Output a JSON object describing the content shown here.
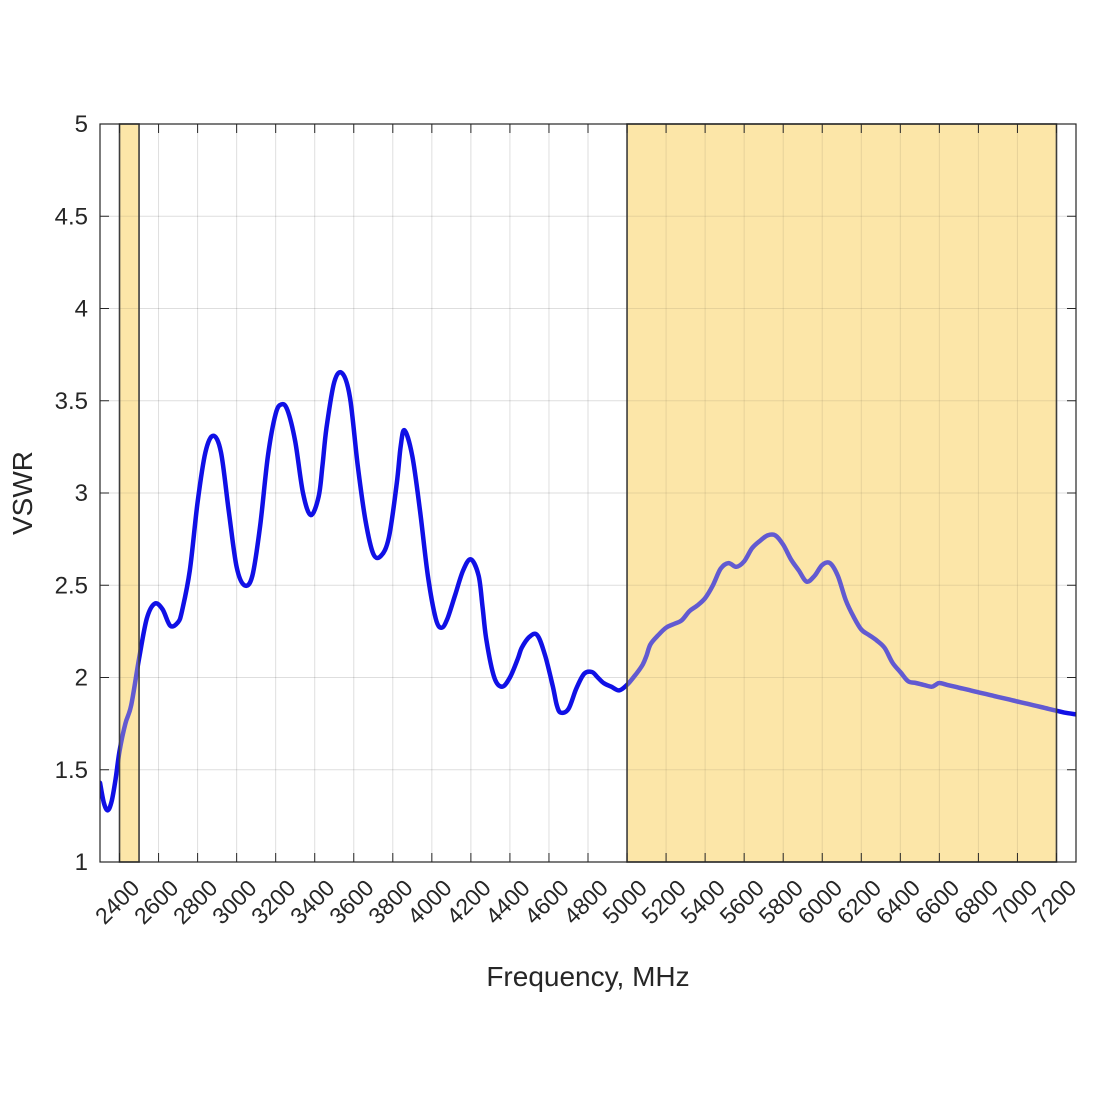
{
  "chart_data": {
    "type": "line",
    "title": "",
    "xlabel": "Frequency, MHz",
    "ylabel": "VSWR",
    "xlim": [
      2300,
      7300
    ],
    "ylim": [
      1,
      5
    ],
    "grid": true,
    "x_ticks": [
      2400,
      2600,
      2800,
      3000,
      3200,
      3400,
      3600,
      3800,
      4000,
      4200,
      4400,
      4600,
      4800,
      5000,
      5200,
      5400,
      5600,
      5800,
      6000,
      6200,
      6400,
      6600,
      6800,
      7000,
      7200
    ],
    "y_ticks": [
      1,
      1.5,
      2,
      2.5,
      3,
      3.5,
      4,
      4.5,
      5
    ],
    "y_tick_labels": [
      "1",
      "1.5",
      "2",
      "2.5",
      "3",
      "3.5",
      "4",
      "4.5",
      "5"
    ],
    "shaded_bands": [
      {
        "x_start": 2400,
        "x_end": 2500,
        "color": "#fce6a8"
      },
      {
        "x_start": 5000,
        "x_end": 7200,
        "color": "#fce6a8"
      }
    ],
    "series": [
      {
        "color": "#1010e6",
        "x": [
          2300,
          2320,
          2340,
          2360,
          2380,
          2400,
          2430,
          2460,
          2500,
          2540,
          2580,
          2620,
          2660,
          2700,
          2720,
          2760,
          2800,
          2840,
          2880,
          2920,
          2960,
          3000,
          3040,
          3080,
          3120,
          3160,
          3200,
          3230,
          3260,
          3300,
          3340,
          3380,
          3420,
          3440,
          3460,
          3500,
          3540,
          3580,
          3620,
          3660,
          3700,
          3740,
          3780,
          3820,
          3840,
          3860,
          3900,
          3940,
          3980,
          4020,
          4050,
          4080,
          4120,
          4160,
          4200,
          4240,
          4260,
          4280,
          4320,
          4360,
          4400,
          4440,
          4460,
          4500,
          4540,
          4580,
          4620,
          4640,
          4660,
          4700,
          4740,
          4780,
          4820,
          4850,
          4880,
          4920,
          4960,
          5000,
          5040,
          5080,
          5100,
          5120,
          5160,
          5200,
          5240,
          5280,
          5320,
          5360,
          5400,
          5440,
          5480,
          5520,
          5560,
          5600,
          5640,
          5680,
          5720,
          5760,
          5800,
          5840,
          5880,
          5920,
          5960,
          6000,
          6040,
          6080,
          6120,
          6160,
          6200,
          6240,
          6280,
          6320,
          6360,
          6400,
          6440,
          6480,
          6520,
          6560,
          6580,
          6600,
          6640,
          6680,
          6720,
          6760,
          6800,
          6840,
          6880,
          6920,
          6960,
          7000,
          7040,
          7080,
          7120,
          7160,
          7200,
          7240,
          7300
        ],
        "y": [
          1.43,
          1.32,
          1.28,
          1.33,
          1.45,
          1.6,
          1.75,
          1.85,
          2.1,
          2.32,
          2.4,
          2.37,
          2.28,
          2.3,
          2.36,
          2.58,
          2.95,
          3.22,
          3.31,
          3.22,
          2.9,
          2.6,
          2.5,
          2.55,
          2.82,
          3.2,
          3.43,
          3.48,
          3.45,
          3.28,
          3.0,
          2.88,
          2.98,
          3.15,
          3.35,
          3.6,
          3.65,
          3.52,
          3.15,
          2.85,
          2.67,
          2.66,
          2.76,
          3.05,
          3.25,
          3.34,
          3.2,
          2.9,
          2.55,
          2.32,
          2.27,
          2.32,
          2.45,
          2.58,
          2.64,
          2.55,
          2.38,
          2.2,
          2.0,
          1.95,
          2.0,
          2.1,
          2.16,
          2.22,
          2.23,
          2.12,
          1.95,
          1.85,
          1.81,
          1.83,
          1.94,
          2.02,
          2.03,
          2.0,
          1.97,
          1.95,
          1.93,
          1.96,
          2.01,
          2.07,
          2.12,
          2.18,
          2.23,
          2.27,
          2.29,
          2.31,
          2.36,
          2.39,
          2.43,
          2.5,
          2.59,
          2.62,
          2.6,
          2.63,
          2.7,
          2.74,
          2.77,
          2.77,
          2.72,
          2.64,
          2.58,
          2.52,
          2.55,
          2.61,
          2.62,
          2.55,
          2.42,
          2.33,
          2.26,
          2.23,
          2.2,
          2.16,
          2.08,
          2.03,
          1.98,
          1.97,
          1.96,
          1.95,
          1.96,
          1.97,
          1.96,
          1.95,
          1.94,
          1.93,
          1.92,
          1.91,
          1.9,
          1.89,
          1.88,
          1.87,
          1.86,
          1.85,
          1.84,
          1.83,
          1.82,
          1.81,
          1.8
        ]
      }
    ]
  }
}
